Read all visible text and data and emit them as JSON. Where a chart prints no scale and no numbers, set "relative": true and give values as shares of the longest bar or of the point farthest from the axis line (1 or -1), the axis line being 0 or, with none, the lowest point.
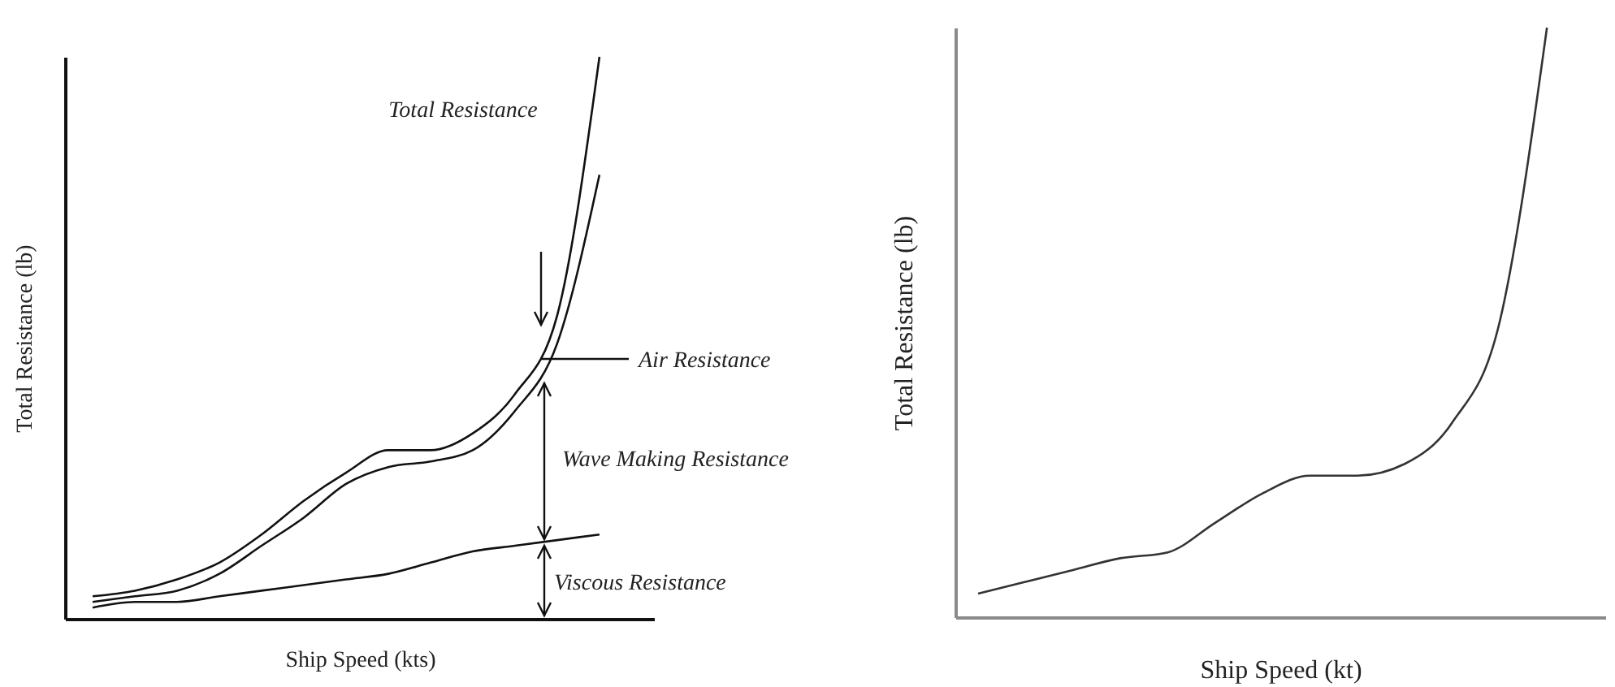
{
  "chart_data": [
    {
      "type": "line",
      "relative": true,
      "xlabel": "Ship Speed (kts)",
      "ylabel": "Total Resistance (lb)",
      "categories": [
        null,
        null,
        null,
        null,
        null,
        null,
        null,
        null,
        null,
        null,
        null,
        null,
        null
      ],
      "series": [
        {
          "color": "#111111",
          "values": [
            0.04,
            0.05,
            0.07,
            0.1,
            0.15,
            0.21,
            0.26,
            0.3,
            0.3,
            0.33,
            0.4,
            0.54,
            1
          ]
        },
        {
          "color": "#111111",
          "values": [
            0.03,
            0.04,
            0.05,
            0.08,
            0.13,
            0.18,
            0.24,
            0.27,
            0.28,
            0.3,
            0.37,
            0.49,
            0.79
          ]
        },
        {
          "color": "#111111",
          "values": [
            0.02,
            0.03,
            0.03,
            0.04,
            0.05,
            0.06,
            0.07,
            0.08,
            0.1,
            0.12,
            0.13,
            0.14,
            0.15
          ]
        }
      ],
      "annotations": [
        "Total Resistance",
        "Air Resistance",
        "Wave Making Resistance",
        "Viscous Resistance"
      ]
    },
    {
      "type": "line",
      "relative": true,
      "xlabel": "Ship Speed (kt)",
      "ylabel": "Total Resistance (lb)",
      "categories": [
        null,
        null,
        null,
        null,
        null,
        null,
        null,
        null,
        null,
        null,
        null,
        null,
        null
      ],
      "series": [
        {
          "color": "#333333",
          "values": [
            0.04,
            0.06,
            0.08,
            0.1,
            0.11,
            0.16,
            0.21,
            0.24,
            0.24,
            0.26,
            0.33,
            0.5,
            1
          ]
        }
      ]
    }
  ]
}
